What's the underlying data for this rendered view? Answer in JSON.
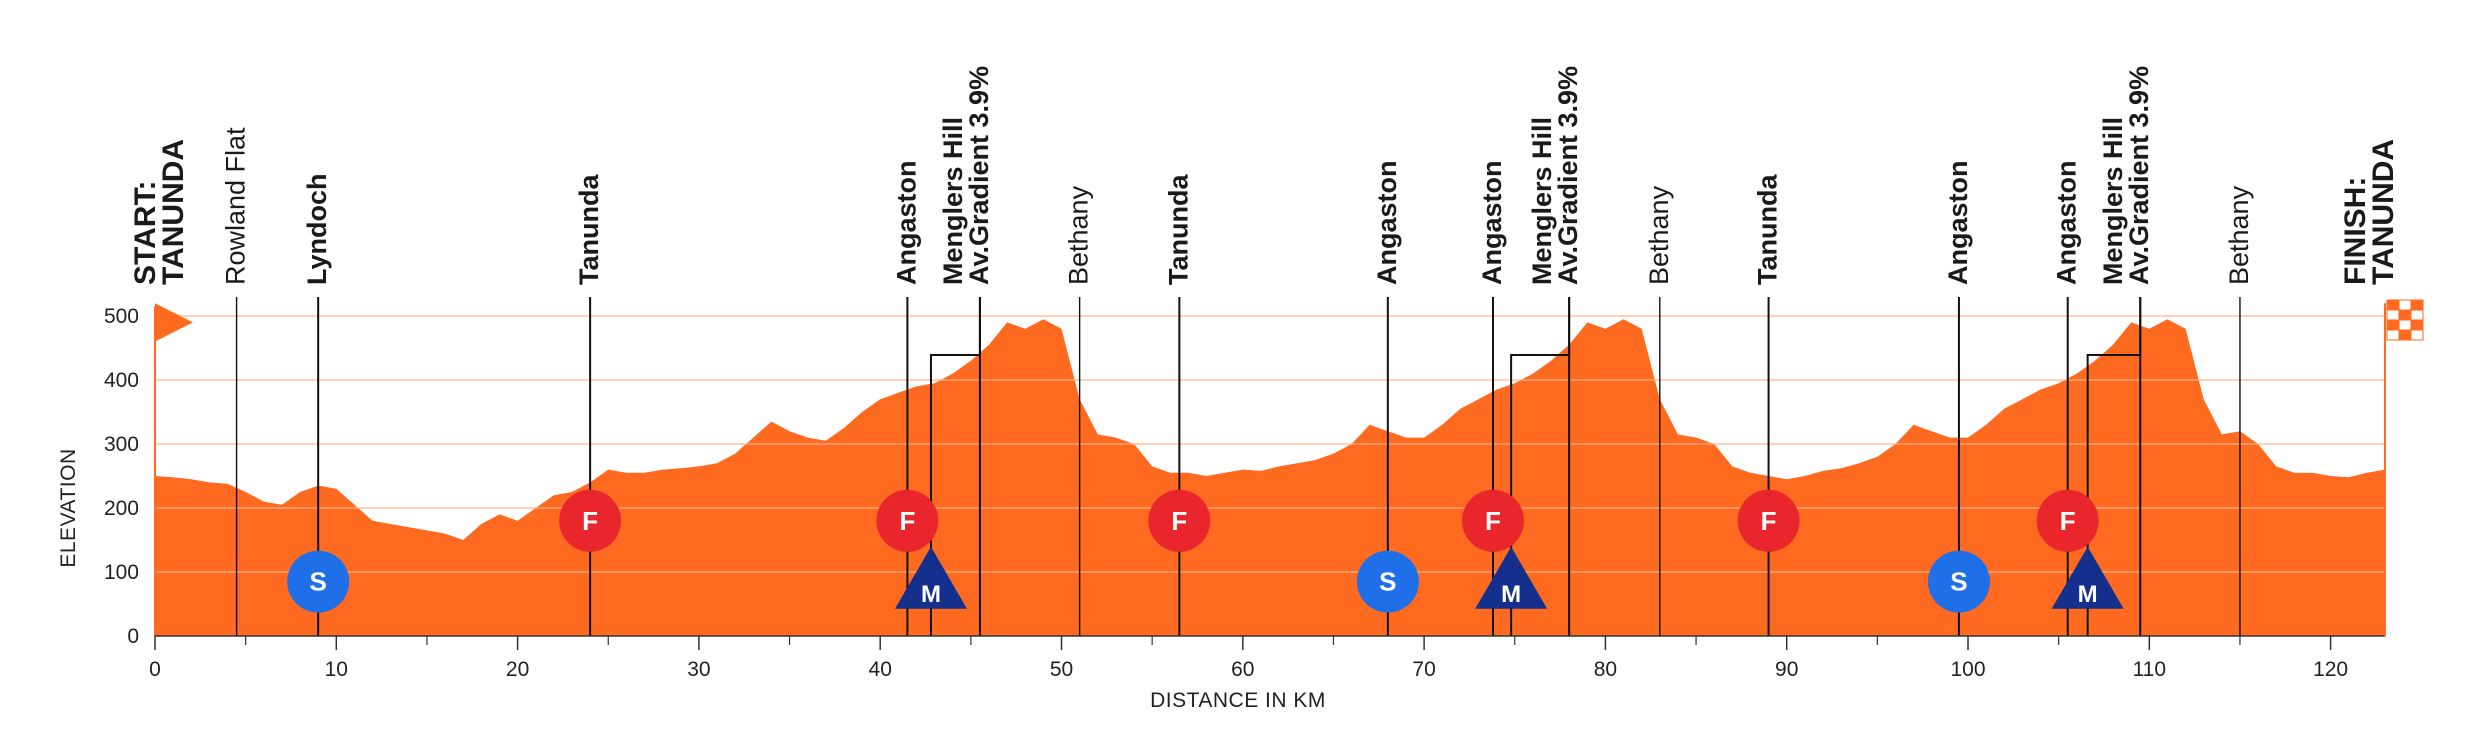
{
  "chart_data": {
    "type": "area",
    "title": "",
    "xlabel": "DISTANCE IN KM",
    "ylabel": "ELEVATION",
    "xlim": [
      0,
      123
    ],
    "ylim": [
      0,
      500
    ],
    "x_ticks": [
      0,
      10,
      20,
      30,
      40,
      50,
      60,
      70,
      80,
      90,
      100,
      110,
      120
    ],
    "x_minor_step": 5,
    "y_ticks": [
      0,
      100,
      200,
      300,
      400,
      500
    ],
    "grid": true,
    "colors": {
      "fill": "#ff6a21",
      "grid": "#ffb48a",
      "feed": "#e8262c",
      "sprint": "#1e6fe8",
      "mountain": "#14308c",
      "finish_flag": "#ff6a21"
    },
    "profile": {
      "x": [
        0,
        1,
        2,
        3,
        4,
        5,
        6,
        7,
        8,
        9,
        10,
        11,
        12,
        13,
        14,
        15,
        16,
        17,
        18,
        19,
        20,
        21,
        22,
        23,
        24,
        25,
        26,
        27,
        28,
        29,
        30,
        31,
        32,
        33,
        34,
        35,
        36,
        37,
        38,
        39,
        40,
        41,
        42,
        43,
        44,
        45,
        46,
        47,
        48,
        49,
        50,
        51,
        52,
        53,
        54,
        55,
        56,
        57,
        58,
        59,
        60,
        61,
        62,
        63,
        64,
        65,
        66,
        67,
        68,
        69,
        70,
        71,
        72,
        73,
        74,
        75,
        76,
        77,
        78,
        79,
        80,
        81,
        82,
        83,
        84,
        85,
        86,
        87,
        88,
        89,
        90,
        91,
        92,
        93,
        94,
        95,
        96,
        97,
        98,
        99,
        100,
        101,
        102,
        103,
        104,
        105,
        106,
        107,
        108,
        109,
        110,
        111,
        112,
        113,
        114,
        115,
        116,
        117,
        118,
        119,
        120,
        121,
        122,
        123
      ],
      "elevation": [
        250,
        248,
        245,
        240,
        238,
        225,
        210,
        205,
        225,
        235,
        230,
        205,
        180,
        175,
        170,
        165,
        160,
        150,
        175,
        190,
        180,
        200,
        220,
        225,
        240,
        260,
        255,
        255,
        260,
        262,
        265,
        270,
        285,
        310,
        335,
        320,
        310,
        305,
        325,
        350,
        370,
        380,
        390,
        395,
        410,
        430,
        455,
        490,
        480,
        495,
        480,
        370,
        315,
        310,
        300,
        265,
        255,
        255,
        250,
        255,
        260,
        258,
        265,
        270,
        275,
        285,
        300,
        330,
        320,
        310,
        310,
        330,
        355,
        370,
        385,
        395,
        410,
        430,
        455,
        490,
        480,
        495,
        480,
        370,
        315,
        310,
        300,
        265,
        255,
        250,
        245,
        250,
        258,
        262,
        270,
        280,
        300,
        330,
        320,
        310,
        310,
        330,
        355,
        370,
        385,
        395,
        410,
        430,
        455,
        490,
        480,
        495,
        480,
        370,
        315,
        320,
        300,
        265,
        255,
        255,
        250,
        248,
        255,
        260
      ]
    },
    "locations": [
      {
        "km": 0,
        "label": "START: TANUNDA",
        "lines": [
          "START:",
          "TANUNDA"
        ],
        "style": "endpoint",
        "line": false
      },
      {
        "km": 4.5,
        "label": "Rowland Flat",
        "lines": [
          "Rowland Flat"
        ],
        "style": "regular",
        "line": true
      },
      {
        "km": 9,
        "label": "Lyndoch",
        "lines": [
          "Lyndoch"
        ],
        "style": "bold",
        "line": true
      },
      {
        "km": 24,
        "label": "Tanunda",
        "lines": [
          "Tanunda"
        ],
        "style": "bold",
        "line": true
      },
      {
        "km": 41.5,
        "label": "Angaston",
        "lines": [
          "Angaston"
        ],
        "style": "bold",
        "line": true
      },
      {
        "km": 45.5,
        "label": "Menglers Hill Av.Gradient 3.9%",
        "lines": [
          "Menglers Hill",
          "Av.Gradient 3.9%"
        ],
        "style": "bold",
        "line": true,
        "connector_km": 42.8
      },
      {
        "km": 51,
        "label": "Bethany",
        "lines": [
          "Bethany"
        ],
        "style": "regular",
        "line": true
      },
      {
        "km": 56.5,
        "label": "Tanunda",
        "lines": [
          "Tanunda"
        ],
        "style": "bold",
        "line": true
      },
      {
        "km": 68,
        "label": "Angaston",
        "lines": [
          "Angaston"
        ],
        "style": "bold",
        "line": true
      },
      {
        "km": 73.8,
        "label": "Angaston",
        "lines": [
          "Angaston"
        ],
        "style": "bold",
        "line": true
      },
      {
        "km": 78,
        "label": "Menglers Hill Av.Gradient 3.9%",
        "lines": [
          "Menglers Hill",
          "Av.Gradient 3.9%"
        ],
        "style": "bold",
        "line": true,
        "connector_km": 74.8
      },
      {
        "km": 83,
        "label": "Bethany",
        "lines": [
          "Bethany"
        ],
        "style": "regular",
        "line": true
      },
      {
        "km": 89,
        "label": "Tanunda",
        "lines": [
          "Tanunda"
        ],
        "style": "bold",
        "line": true
      },
      {
        "km": 99.5,
        "label": "Angaston",
        "lines": [
          "Angaston"
        ],
        "style": "bold",
        "line": true
      },
      {
        "km": 105.5,
        "label": "Angaston",
        "lines": [
          "Angaston"
        ],
        "style": "bold",
        "line": true
      },
      {
        "km": 109.5,
        "label": "Menglers Hill Av.Gradient 3.9%",
        "lines": [
          "Menglers Hill",
          "Av.Gradient 3.9%"
        ],
        "style": "bold",
        "line": true,
        "connector_km": 106.6
      },
      {
        "km": 115,
        "label": "Bethany",
        "lines": [
          "Bethany"
        ],
        "style": "regular",
        "line": true
      },
      {
        "km": 123,
        "label": "FINISH: TANUNDA",
        "lines": [
          "FINISH:",
          "TANUNDA"
        ],
        "style": "endpoint",
        "line": false
      }
    ],
    "markers": [
      {
        "type": "sprint",
        "letter": "S",
        "km": 9,
        "elevation": 85
      },
      {
        "type": "feed",
        "letter": "F",
        "km": 24,
        "elevation": 180
      },
      {
        "type": "feed",
        "letter": "F",
        "km": 41.5,
        "elevation": 180
      },
      {
        "type": "mountain",
        "letter": "M",
        "km": 42.8,
        "elevation": 80
      },
      {
        "type": "feed",
        "letter": "F",
        "km": 56.5,
        "elevation": 180
      },
      {
        "type": "sprint",
        "letter": "S",
        "km": 68,
        "elevation": 85
      },
      {
        "type": "feed",
        "letter": "F",
        "km": 73.8,
        "elevation": 180
      },
      {
        "type": "mountain",
        "letter": "M",
        "km": 74.8,
        "elevation": 80
      },
      {
        "type": "feed",
        "letter": "F",
        "km": 89,
        "elevation": 180
      },
      {
        "type": "sprint",
        "letter": "S",
        "km": 99.5,
        "elevation": 85
      },
      {
        "type": "feed",
        "letter": "F",
        "km": 105.5,
        "elevation": 180
      },
      {
        "type": "mountain",
        "letter": "M",
        "km": 106.6,
        "elevation": 80
      }
    ]
  }
}
